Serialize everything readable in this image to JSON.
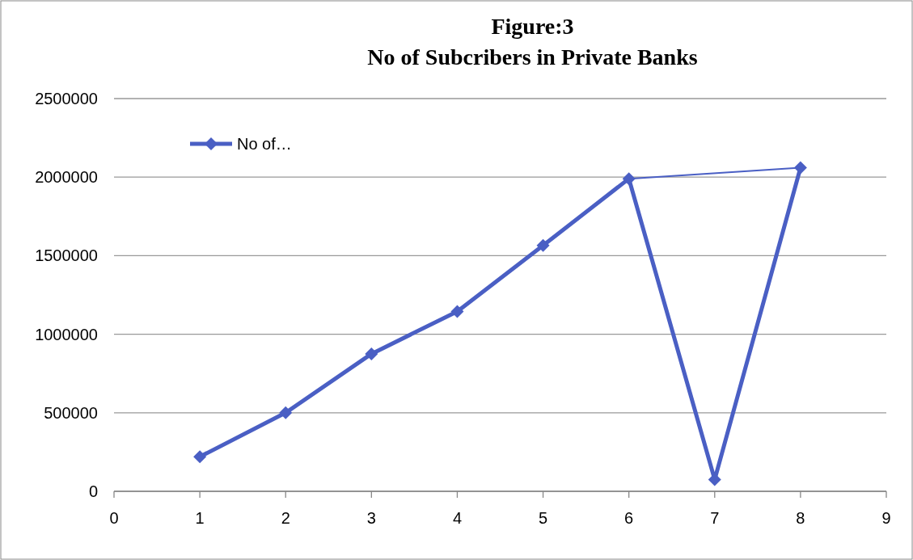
{
  "chart_data": {
    "type": "line",
    "title": "Figure:3",
    "subtitle": "No of Subcribers in Private Banks",
    "xlim": [
      0,
      9
    ],
    "xticks": [
      0,
      1,
      2,
      3,
      4,
      5,
      6,
      7,
      8,
      9
    ],
    "ylim": [
      0,
      2500000
    ],
    "yticks": [
      0,
      500000,
      1000000,
      1500000,
      2000000,
      2500000
    ],
    "grid": "y",
    "legend": "top left",
    "marker": "diamond",
    "line_style": "solid",
    "series": [
      {
        "name": "No of…",
        "color": "#4a5fc4",
        "x": [
          1,
          2,
          3,
          4,
          5,
          6,
          7,
          8
        ],
        "values": [
          220000,
          500000,
          875000,
          1145000,
          1565000,
          1990000,
          75000,
          2060000
        ]
      },
      {
        "type": "line",
        "marker": "none",
        "color": "#4a5fc4",
        "x": [
          6,
          8
        ],
        "values": [
          1990000,
          2060000
        ]
      }
    ]
  }
}
